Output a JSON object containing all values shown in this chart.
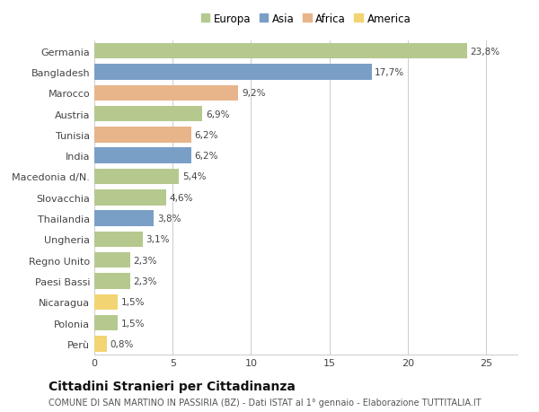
{
  "categories": [
    "Perù",
    "Polonia",
    "Nicaragua",
    "Paesi Bassi",
    "Regno Unito",
    "Ungheria",
    "Thailandia",
    "Slovacchia",
    "Macedonia d/N.",
    "India",
    "Tunisia",
    "Austria",
    "Marocco",
    "Bangladesh",
    "Germania"
  ],
  "values": [
    0.8,
    1.5,
    1.5,
    2.3,
    2.3,
    3.1,
    3.8,
    4.6,
    5.4,
    6.2,
    6.2,
    6.9,
    9.2,
    17.7,
    23.8
  ],
  "continents": [
    "America",
    "Europa",
    "America",
    "Europa",
    "Europa",
    "Europa",
    "Asia",
    "Europa",
    "Europa",
    "Asia",
    "Africa",
    "Europa",
    "Africa",
    "Asia",
    "Europa"
  ],
  "colors": {
    "Europa": "#b5c98e",
    "Asia": "#7a9fc7",
    "Africa": "#e8b48a",
    "America": "#f2d472"
  },
  "legend_order": [
    "Europa",
    "Asia",
    "Africa",
    "America"
  ],
  "title": "Cittadini Stranieri per Cittadinanza",
  "subtitle": "COMUNE DI SAN MARTINO IN PASSIRIA (BZ) - Dati ISTAT al 1° gennaio - Elaborazione TUTTITALIA.IT",
  "xlim": [
    0,
    27
  ],
  "xticks": [
    0,
    5,
    10,
    15,
    20,
    25
  ],
  "bg_color": "#ffffff",
  "grid_color": "#cccccc",
  "bar_height": 0.75,
  "value_fontsize": 7.5,
  "label_fontsize": 8,
  "tick_fontsize": 8,
  "title_fontsize": 10,
  "subtitle_fontsize": 7
}
